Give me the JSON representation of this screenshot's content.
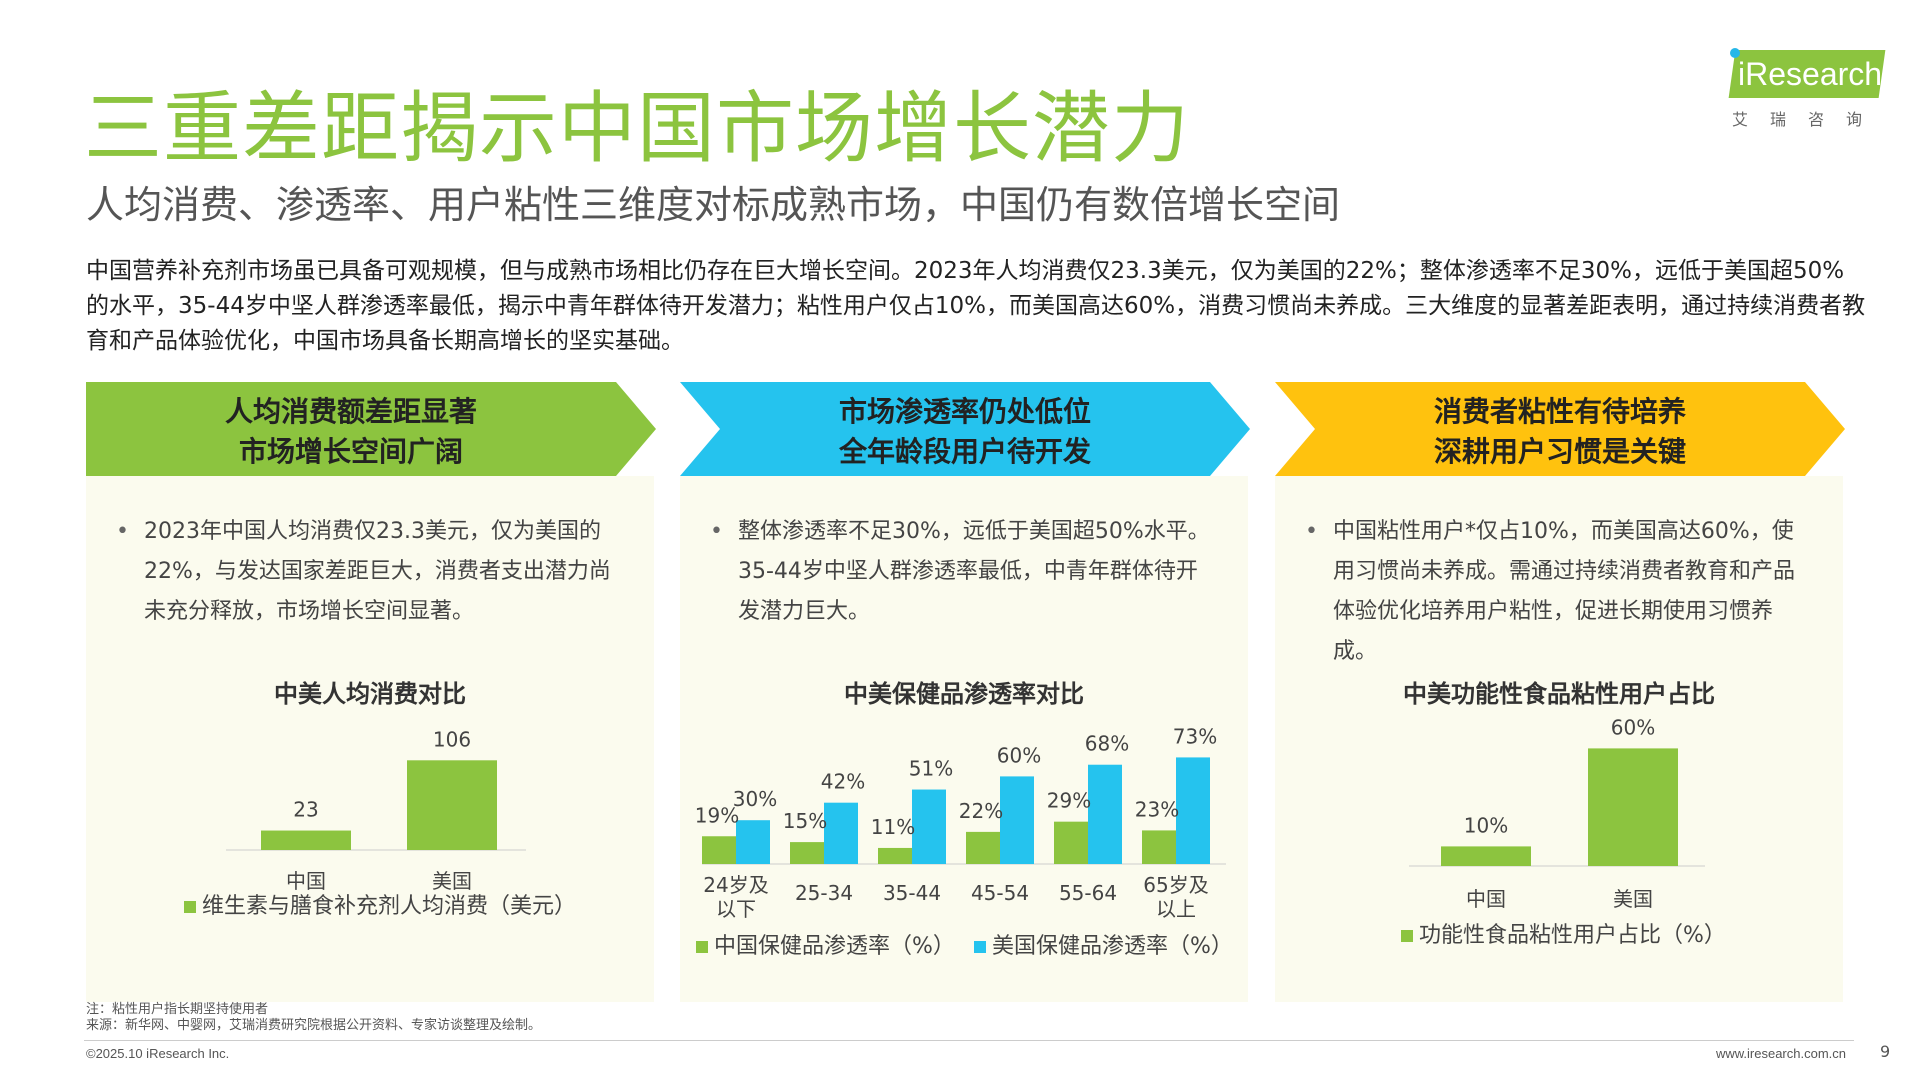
{
  "header": {
    "title": "三重差距揭示中国市场增长潜力",
    "subtitle": "人均消费、渗透率、用户粘性三维度对标成熟市场，中国仍有数倍增长空间"
  },
  "logo": {
    "text": "iResearch",
    "cn": "艾瑞咨询"
  },
  "intro": "中国营养补充剂市场虽已具备可观规模，但与成熟市场相比仍存在巨大增长空间。2023年人均消费仅23.3美元，仅为美国的22%；整体渗透率不足30%，远低于美国超50%的水平，35-44岁中坚人群渗透率最低，揭示中青年群体待开发潜力；粘性用户仅占10%，而美国高达60%，消费习惯尚未养成。三大维度的显著差距表明，通过持续消费者教育和产品体验优化，中国市场具备长期高增长的坚实基础。",
  "columns": [
    {
      "banner_line1": "人均消费额差距显著",
      "banner_line2": "市场增长空间广阔",
      "color": "#8cc43f",
      "bullet": "2023年中国人均消费仅23.3美元，仅为美国的22%，与发达国家差距巨大，消费者支出潜力尚未充分释放，市场增长空间显著。",
      "chart_title": "中美人均消费对比"
    },
    {
      "banner_line1": "市场渗透率仍处低位",
      "banner_line2": "全年龄段用户待开发",
      "color": "#25c3ee",
      "bullet": "整体渗透率不足30%，远低于美国超50%水平。35-44岁中坚人群渗透率最低，中青年群体待开发潜力巨大。",
      "chart_title": "中美保健品渗透率对比"
    },
    {
      "banner_line1": "消费者粘性有待培养",
      "banner_line2": "深耕用户习惯是关键",
      "color": "#ffc20e",
      "bullet": "中国粘性用户*仅占10%，而美国高达60%，使用习惯尚未养成。需通过持续消费者教育和产品体验优化培养用户粘性，促进长期使用习惯养成。",
      "chart_title": "中美功能性食品粘性用户占比"
    }
  ],
  "chart_data": [
    {
      "type": "bar",
      "title": "中美人均消费对比",
      "categories": [
        "中国",
        "美国"
      ],
      "series": [
        {
          "name": "维生素与膳食补充剂人均消费（美元）",
          "values": [
            23,
            106
          ],
          "labels": [
            "23",
            "106"
          ],
          "color": "#8cc43f"
        }
      ],
      "ylim": [
        0,
        130
      ],
      "legend": "bottom"
    },
    {
      "type": "bar",
      "title": "中美保健品渗透率对比",
      "categories": [
        "24岁及以下",
        "25-34",
        "35-44",
        "45-54",
        "55-64",
        "65岁及以上"
      ],
      "category_lines": [
        [
          "24岁及",
          "以下"
        ],
        [
          "25-34"
        ],
        [
          "35-44"
        ],
        [
          "45-54"
        ],
        [
          "55-64"
        ],
        [
          "65岁及",
          "以上"
        ]
      ],
      "series": [
        {
          "name": "中国保健品渗透率（%）",
          "values": [
            19,
            15,
            11,
            22,
            29,
            23
          ],
          "labels": [
            "19%",
            "15%",
            "11%",
            "22%",
            "29%",
            "23%"
          ],
          "color": "#8cc43f"
        },
        {
          "name": "美国保健品渗透率（%）",
          "values": [
            30,
            42,
            51,
            60,
            68,
            73
          ],
          "labels": [
            "30%",
            "42%",
            "51%",
            "60%",
            "68%",
            "73%"
          ],
          "color": "#25c3ee"
        }
      ],
      "ylim": [
        0,
        100
      ],
      "legend": "bottom"
    },
    {
      "type": "bar",
      "title": "中美功能性食品粘性用户占比",
      "categories": [
        "中国",
        "美国"
      ],
      "series": [
        {
          "name": "功能性食品粘性用户占比（%）",
          "values": [
            10,
            60
          ],
          "labels": [
            "10%",
            "60%"
          ],
          "color": "#8cc43f"
        }
      ],
      "ylim": [
        0,
        75
      ],
      "legend": "bottom"
    }
  ],
  "footer": {
    "note": "注：粘性用户指长期坚持使用者",
    "source": "来源：新华网、中婴网，艾瑞消费研究院根据公开资料、专家访谈整理及绘制。",
    "copyright": "©2025.10 iResearch Inc.",
    "website": "www.iresearch.com.cn",
    "page": "9"
  }
}
